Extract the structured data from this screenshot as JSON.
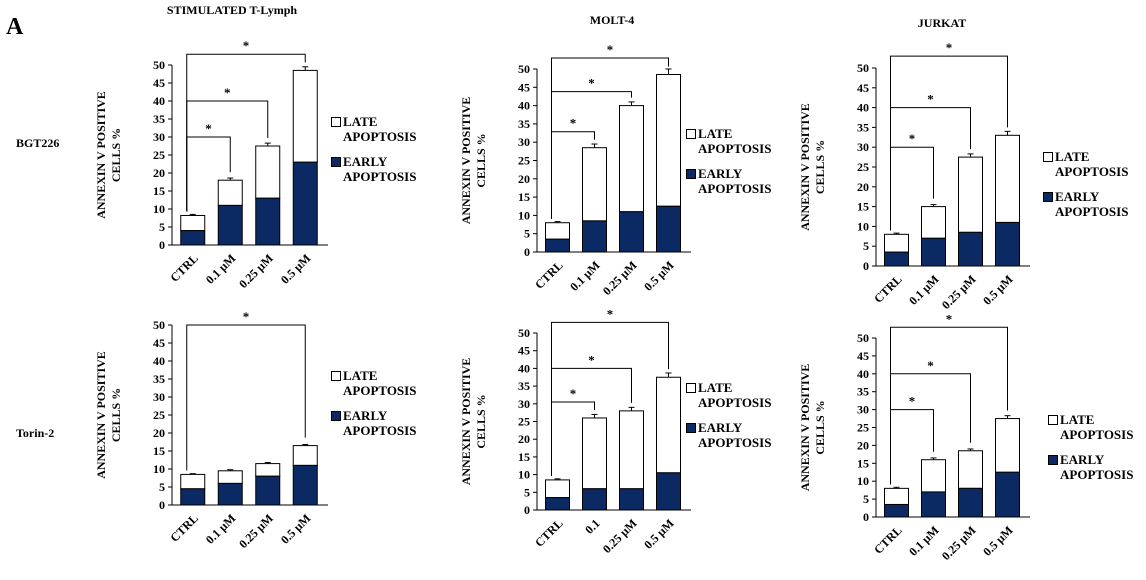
{
  "panel_letter": "A",
  "column_titles": [
    "STIMULATED T-Lymph",
    "MOLT-4",
    "JURKAT"
  ],
  "row_labels": [
    "BGT226",
    "Torin-2"
  ],
  "legend": {
    "late": "LATE\nAPOPTOSIS",
    "early": "EARLY\nAPOPTOSIS"
  },
  "colors": {
    "early": "#0b2a63",
    "late": "#ffffff",
    "axis": "#000000"
  },
  "chart_data": [
    {
      "type": "bar",
      "stacked": true,
      "title": "STIMULATED T-Lymph",
      "row": "BGT226",
      "categories": [
        "CTRL",
        "0.1  µM",
        "0.25  µM",
        "0.5  µM"
      ],
      "ylabel": "ANNEXIN V POSITIVE CELLS %",
      "ylim": [
        0,
        50
      ],
      "yticks": [
        0,
        5,
        10,
        15,
        20,
        25,
        30,
        35,
        40,
        45,
        50
      ],
      "series": [
        {
          "name": "EARLY APOPTOSIS",
          "values": [
            4,
            11,
            13,
            23
          ]
        },
        {
          "name": "LATE APOPTOSIS",
          "values": [
            4.2,
            7,
            14.5,
            25.5
          ]
        }
      ],
      "error": [
        0.3,
        0.6,
        0.8,
        1.0
      ],
      "significance": [
        {
          "from": 0,
          "to": 1,
          "label": "*"
        },
        {
          "from": 0,
          "to": 2,
          "label": "*"
        },
        {
          "from": 0,
          "to": 3,
          "label": "*"
        }
      ]
    },
    {
      "type": "bar",
      "stacked": true,
      "title": "MOLT-4",
      "row": "BGT226",
      "categories": [
        "CTRL",
        "0.1  µM",
        "0.25  µM",
        "0.5  µM"
      ],
      "ylabel": "ANNEXIN V POSITIVE CELLS %",
      "ylim": [
        0,
        50
      ],
      "yticks": [
        0,
        5,
        10,
        15,
        20,
        25,
        30,
        35,
        40,
        45,
        50
      ],
      "series": [
        {
          "name": "EARLY APOPTOSIS",
          "values": [
            3.5,
            8.5,
            11,
            12.5
          ]
        },
        {
          "name": "LATE APOPTOSIS",
          "values": [
            4.5,
            20,
            29,
            36
          ]
        }
      ],
      "error": [
        0.3,
        1.0,
        1.0,
        1.5
      ],
      "significance": [
        {
          "from": 0,
          "to": 1,
          "label": "*"
        },
        {
          "from": 0,
          "to": 2,
          "label": "*"
        },
        {
          "from": 0,
          "to": 3,
          "label": "*"
        }
      ]
    },
    {
      "type": "bar",
      "stacked": true,
      "title": "JURKAT",
      "row": "BGT226",
      "categories": [
        "CTRL",
        "0.1 µM",
        "0.25  µM",
        "0.5  µM"
      ],
      "ylabel": "ANNEXIN V POSITIVE CELLS %",
      "ylim": [
        0,
        50
      ],
      "yticks": [
        0,
        5,
        10,
        15,
        20,
        25,
        30,
        35,
        40,
        45,
        50
      ],
      "series": [
        {
          "name": "EARLY APOPTOSIS",
          "values": [
            3.5,
            7,
            8.5,
            11
          ]
        },
        {
          "name": "LATE APOPTOSIS",
          "values": [
            4.5,
            8,
            19,
            22
          ]
        }
      ],
      "error": [
        0.3,
        0.5,
        0.8,
        1.0
      ],
      "significance": [
        {
          "from": 0,
          "to": 1,
          "label": "*"
        },
        {
          "from": 0,
          "to": 2,
          "label": "*"
        },
        {
          "from": 0,
          "to": 3,
          "label": "*"
        }
      ]
    },
    {
      "type": "bar",
      "stacked": true,
      "title": "STIMULATED T-Lymph",
      "row": "Torin-2",
      "categories": [
        "CTRL",
        "0.1  µM",
        "0.25  µM",
        "0.5  µM"
      ],
      "ylabel": "ANNEXIN V POSITIVE CELLS %",
      "ylim": [
        0,
        50
      ],
      "yticks": [
        0,
        5,
        10,
        15,
        20,
        25,
        30,
        35,
        40,
        45,
        50
      ],
      "series": [
        {
          "name": "EARLY APOPTOSIS",
          "values": [
            4.5,
            6,
            8,
            11
          ]
        },
        {
          "name": "LATE APOPTOSIS",
          "values": [
            4,
            3.5,
            3.5,
            5.5
          ]
        }
      ],
      "error": [
        0.2,
        0.3,
        0.3,
        0.3
      ],
      "significance": [
        {
          "from": 0,
          "to": 3,
          "label": "*"
        }
      ]
    },
    {
      "type": "bar",
      "stacked": true,
      "title": "MOLT-4",
      "row": "Torin-2",
      "categories": [
        "CTRL",
        "0.1",
        "0.25  µM",
        "0.5  µM"
      ],
      "ylabel": "ANNEXIN V POSITIVE CELLS %",
      "ylim": [
        0,
        50
      ],
      "yticks": [
        0,
        5,
        10,
        15,
        20,
        25,
        30,
        35,
        40,
        45,
        50
      ],
      "series": [
        {
          "name": "EARLY APOPTOSIS",
          "values": [
            3.5,
            6,
            6,
            10.5
          ]
        },
        {
          "name": "LATE APOPTOSIS",
          "values": [
            5,
            20,
            22,
            27
          ]
        }
      ],
      "error": [
        0.3,
        1.0,
        1.0,
        1.2
      ],
      "significance": [
        {
          "from": 0,
          "to": 1,
          "label": "*"
        },
        {
          "from": 0,
          "to": 2,
          "label": "*"
        },
        {
          "from": 0,
          "to": 3,
          "label": "*"
        }
      ]
    },
    {
      "type": "bar",
      "stacked": true,
      "title": "JURKAT",
      "row": "Torin-2",
      "categories": [
        "CTRL",
        "0.1 µM",
        "0.25  µM",
        "0.5  µM"
      ],
      "ylabel": "ANNEXIN V POSITIVE CELLS %",
      "ylim": [
        0,
        50
      ],
      "yticks": [
        0,
        5,
        10,
        15,
        20,
        25,
        30,
        35,
        40,
        45,
        50
      ],
      "series": [
        {
          "name": "EARLY APOPTOSIS",
          "values": [
            3.5,
            7,
            8,
            12.5
          ]
        },
        {
          "name": "LATE APOPTOSIS",
          "values": [
            4.5,
            9,
            10.5,
            15
          ]
        }
      ],
      "error": [
        0.3,
        0.5,
        0.5,
        0.8
      ],
      "significance": [
        {
          "from": 0,
          "to": 1,
          "label": "*"
        },
        {
          "from": 0,
          "to": 2,
          "label": "*"
        },
        {
          "from": 0,
          "to": 3,
          "label": "*"
        }
      ]
    }
  ]
}
